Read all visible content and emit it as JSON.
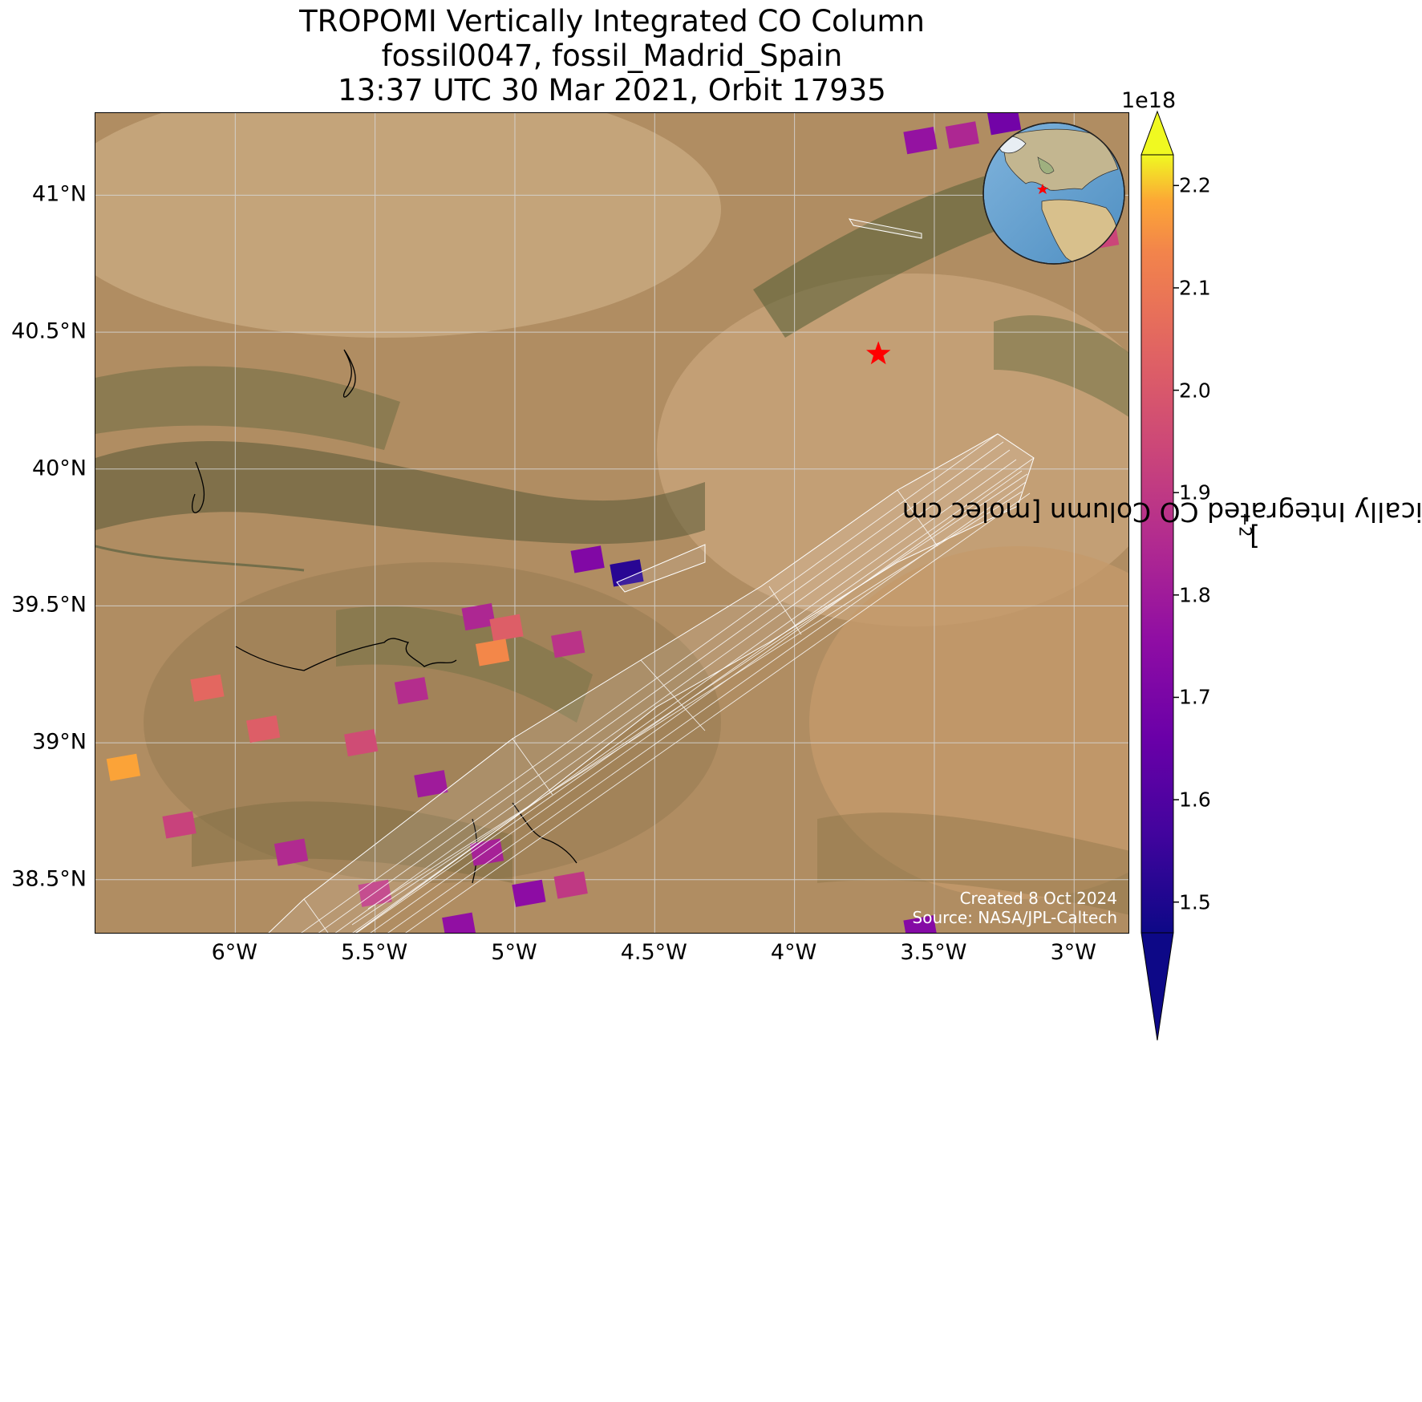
{
  "title": {
    "line1": "TROPOMI Vertically Integrated CO Column",
    "line2": "fossil0047, fossil_Madrid_Spain",
    "line3": "13:37 UTC 30 Mar 2021, Orbit 17935"
  },
  "map": {
    "extent": {
      "lon_min": -6.5,
      "lon_max": -2.8,
      "lat_min": 38.3,
      "lat_max": 41.3
    },
    "lat_ticks": [
      41.0,
      40.5,
      40.0,
      39.5,
      39.0,
      38.5
    ],
    "lat_labels": [
      "41°N",
      "40.5°N",
      "40°N",
      "39.5°N",
      "39°N",
      "38.5°N"
    ],
    "lon_ticks": [
      -6.0,
      -5.5,
      -5.0,
      -4.5,
      -4.0,
      -3.5,
      -3.0
    ],
    "lon_labels": [
      "6°W",
      "5.5°W",
      "5°W",
      "4.5°W",
      "4°W",
      "3.5°W",
      "3°W"
    ],
    "basemap": "satellite imagery",
    "gridlines": true,
    "target_marker": {
      "symbol": "red-star",
      "lon": -3.7,
      "lat": 40.42,
      "color": "#ff0000"
    },
    "inset_globe": {
      "position": "top-right",
      "marker": "red-star"
    },
    "credits": {
      "created": "Created 8 Oct 2024",
      "source": "Source: NASA/JPL-Caltech"
    }
  },
  "colorbar": {
    "label": "TROPOMI Vertically Integrated CO Column [molec cm",
    "label_exponent": "−2",
    "label_close": "]",
    "exponent_label": "1e18",
    "colormap": "plasma",
    "vmin": 1.47,
    "vmax": 2.23,
    "extend": "both",
    "ticks": [
      2.2,
      2.1,
      2.0,
      1.9,
      1.8,
      1.7,
      1.6,
      1.5
    ],
    "tick_labels": [
      "2.2",
      "2.1",
      "2.0",
      "1.9",
      "1.8",
      "1.7",
      "1.6",
      "1.5"
    ]
  },
  "chart_data": {
    "type": "heatmap",
    "title": "TROPOMI Vertically Integrated CO Column",
    "units": "molec cm^-2 (x1e18)",
    "pixels": [
      {
        "lon": -5.13,
        "lat": 39.46,
        "value": 1.84
      },
      {
        "lon": -5.03,
        "lat": 39.42,
        "value": 2.02
      },
      {
        "lon": -5.08,
        "lat": 39.33,
        "value": 2.14
      },
      {
        "lon": -4.74,
        "lat": 39.67,
        "value": 1.72
      },
      {
        "lon": -4.6,
        "lat": 39.62,
        "value": 1.52
      },
      {
        "lon": -4.81,
        "lat": 39.36,
        "value": 1.88
      },
      {
        "lon": -5.37,
        "lat": 39.19,
        "value": 1.86
      },
      {
        "lon": -6.4,
        "lat": 38.91,
        "value": 2.18
      },
      {
        "lon": -6.1,
        "lat": 39.2,
        "value": 2.05
      },
      {
        "lon": -5.9,
        "lat": 39.05,
        "value": 2.02
      },
      {
        "lon": -5.55,
        "lat": 39.0,
        "value": 1.96
      },
      {
        "lon": -5.3,
        "lat": 38.85,
        "value": 1.8
      },
      {
        "lon": -6.2,
        "lat": 38.7,
        "value": 1.93
      },
      {
        "lon": -5.8,
        "lat": 38.6,
        "value": 1.85
      },
      {
        "lon": -5.5,
        "lat": 38.45,
        "value": 1.9
      },
      {
        "lon": -5.1,
        "lat": 38.6,
        "value": 1.82
      },
      {
        "lon": -4.95,
        "lat": 38.45,
        "value": 1.75
      },
      {
        "lon": -5.2,
        "lat": 38.33,
        "value": 1.76
      },
      {
        "lon": -4.8,
        "lat": 38.48,
        "value": 1.9
      },
      {
        "lon": -3.55,
        "lat": 38.32,
        "value": 1.73
      },
      {
        "lon": -3.55,
        "lat": 41.2,
        "value": 1.77
      },
      {
        "lon": -3.4,
        "lat": 41.22,
        "value": 1.84
      },
      {
        "lon": -3.25,
        "lat": 41.27,
        "value": 1.68
      },
      {
        "lon": -2.9,
        "lat": 40.85,
        "value": 1.94
      }
    ]
  }
}
